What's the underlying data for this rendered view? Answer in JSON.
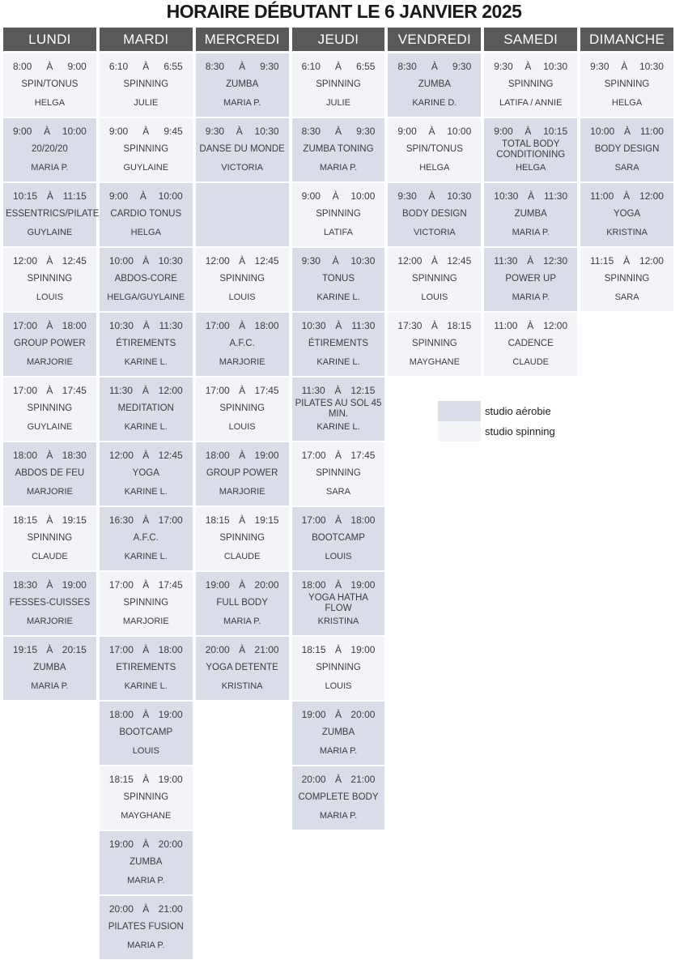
{
  "title": "HORAIRE DÉBUTANT LE 6 JANVIER 2025",
  "time_separator": "À",
  "colors": {
    "header_bg": "#595959",
    "header_text": "#ffffff",
    "aerobie": "#d8dde7",
    "spinning": "#f2f4f8",
    "cell_text": "#3c3c3c"
  },
  "legend": {
    "items": [
      {
        "label": "studio aérobie",
        "studio": "aerobie"
      },
      {
        "label": "studio spinning",
        "studio": "spinning"
      }
    ]
  },
  "days": [
    {
      "name": "LUNDI",
      "slots": [
        {
          "start": "8:00",
          "end": "9:00",
          "name": "SPIN/TONUS",
          "instructor": "HELGA",
          "studio": "spinning"
        },
        {
          "start": "9:00",
          "end": "10:00",
          "name": "20/20/20",
          "instructor": "MARIA P.",
          "studio": "aerobie"
        },
        {
          "start": "10:15",
          "end": "11:15",
          "name": "ESSENTRICS/PILATES",
          "instructor": "GUYLAINE",
          "studio": "aerobie"
        },
        {
          "start": "12:00",
          "end": "12:45",
          "name": "SPINNING",
          "instructor": "LOUIS",
          "studio": "spinning"
        },
        {
          "start": "17:00",
          "end": "18:00",
          "name": "GROUP POWER",
          "instructor": "MARJORIE",
          "studio": "aerobie"
        },
        {
          "start": "17:00",
          "end": "17:45",
          "name": "SPINNING",
          "instructor": "GUYLAINE",
          "studio": "spinning"
        },
        {
          "start": "18:00",
          "end": "18:30",
          "name": "ABDOS DE FEU",
          "instructor": "MARJORIE",
          "studio": "aerobie"
        },
        {
          "start": "18:15",
          "end": "19:15",
          "name": "SPINNING",
          "instructor": "CLAUDE",
          "studio": "spinning"
        },
        {
          "start": "18:30",
          "end": "19:00",
          "name": "FESSES-CUISSES",
          "instructor": "MARJORIE",
          "studio": "aerobie"
        },
        {
          "start": "19:15",
          "end": "20:15",
          "name": "ZUMBA",
          "instructor": "MARIA P.",
          "studio": "aerobie"
        }
      ]
    },
    {
      "name": "MARDI",
      "slots": [
        {
          "start": "6:10",
          "end": "6:55",
          "name": "SPINNING",
          "instructor": "JULIE",
          "studio": "spinning"
        },
        {
          "start": "9:00",
          "end": "9:45",
          "name": "SPINNING",
          "instructor": "GUYLAINE",
          "studio": "spinning"
        },
        {
          "start": "9:00",
          "end": "10:00",
          "name": "CARDIO TONUS",
          "instructor": "HELGA",
          "studio": "aerobie"
        },
        {
          "start": "10:00",
          "end": "10:30",
          "name": "ABDOS-CORE",
          "instructor": "HELGA/GUYLAINE",
          "studio": "aerobie"
        },
        {
          "start": "10:30",
          "end": "11:30",
          "name": "ÉTIREMENTS",
          "instructor": "KARINE L.",
          "studio": "aerobie"
        },
        {
          "start": "11:30",
          "end": "12:00",
          "name": "MEDITATION",
          "instructor": "KARINE L.",
          "studio": "aerobie"
        },
        {
          "start": "12:00",
          "end": "12:45",
          "name": "YOGA",
          "instructor": "KARINE L.",
          "studio": "aerobie"
        },
        {
          "start": "16:30",
          "end": "17:00",
          "name": "A.F.C.",
          "instructor": "KARINE L.",
          "studio": "aerobie"
        },
        {
          "start": "17:00",
          "end": "17:45",
          "name": "SPINNING",
          "instructor": "MARJORIE",
          "studio": "spinning"
        },
        {
          "start": "17:00",
          "end": "18:00",
          "name": "ETIREMENTS",
          "instructor": "KARINE L.",
          "studio": "aerobie"
        },
        {
          "start": "18:00",
          "end": "19:00",
          "name": "BOOTCAMP",
          "instructor": "LOUIS",
          "studio": "aerobie"
        },
        {
          "start": "18:15",
          "end": "19:00",
          "name": "SPINNING",
          "instructor": "MAYGHANE",
          "studio": "spinning"
        },
        {
          "start": "19:00",
          "end": "20:00",
          "name": "ZUMBA",
          "instructor": "MARIA P.",
          "studio": "aerobie"
        },
        {
          "start": "20:00",
          "end": "21:00",
          "name": "PILATES FUSION",
          "instructor": "MARIA P.",
          "studio": "aerobie"
        }
      ]
    },
    {
      "name": "MERCREDI",
      "slots": [
        {
          "start": "8:30",
          "end": "9:30",
          "name": "ZUMBA",
          "instructor": "MARIA P.",
          "studio": "aerobie"
        },
        {
          "start": "9:30",
          "end": "10:30",
          "name": "DANSE DU MONDE",
          "instructor": "VICTORIA",
          "studio": "aerobie"
        },
        {
          "start": "",
          "end": "",
          "name": "",
          "instructor": "",
          "studio": "aerobie",
          "empty": true
        },
        {
          "start": "12:00",
          "end": "12:45",
          "name": "SPINNING",
          "instructor": "LOUIS",
          "studio": "spinning"
        },
        {
          "start": "17:00",
          "end": "18:00",
          "name": "A.F.C.",
          "instructor": "MARJORIE",
          "studio": "aerobie"
        },
        {
          "start": "17:00",
          "end": "17:45",
          "name": "SPINNING",
          "instructor": "LOUIS",
          "studio": "spinning"
        },
        {
          "start": "18:00",
          "end": "19:00",
          "name": "GROUP POWER",
          "instructor": "MARJORIE",
          "studio": "aerobie"
        },
        {
          "start": "18:15",
          "end": "19:15",
          "name": "SPINNING",
          "instructor": "CLAUDE",
          "studio": "spinning"
        },
        {
          "start": "19:00",
          "end": "20:00",
          "name": "FULL BODY",
          "instructor": "MARIA P.",
          "studio": "aerobie"
        },
        {
          "start": "20:00",
          "end": "21:00",
          "name": "YOGA DETENTE",
          "instructor": "KRISTINA",
          "studio": "aerobie"
        }
      ]
    },
    {
      "name": "JEUDI",
      "slots": [
        {
          "start": "6:10",
          "end": "6:55",
          "name": "SPINNING",
          "instructor": "JULIE",
          "studio": "spinning"
        },
        {
          "start": "8:30",
          "end": "9:30",
          "name": "ZUMBA TONING",
          "instructor": "MARIA P.",
          "studio": "aerobie"
        },
        {
          "start": "9:00",
          "end": "10:00",
          "name": "SPINNING",
          "instructor": "LATIFA",
          "studio": "spinning"
        },
        {
          "start": "9:30",
          "end": "10:30",
          "name": "TONUS",
          "instructor": "KARINE L.",
          "studio": "aerobie"
        },
        {
          "start": "10:30",
          "end": "11:30",
          "name": "ÉTIREMENTS",
          "instructor": "KARINE L.",
          "studio": "aerobie"
        },
        {
          "start": "11:30",
          "end": "12:15",
          "name": "PILATES AU SOL 45 MIN.",
          "instructor": "KARINE L.",
          "studio": "aerobie"
        },
        {
          "start": "17:00",
          "end": "17:45",
          "name": "SPINNING",
          "instructor": "SARA",
          "studio": "spinning"
        },
        {
          "start": "17:00",
          "end": "18:00",
          "name": "BOOTCAMP",
          "instructor": "LOUIS",
          "studio": "aerobie"
        },
        {
          "start": "18:00",
          "end": "19:00",
          "name": "YOGA HATHA FLOW",
          "instructor": "KRISTINA",
          "studio": "aerobie"
        },
        {
          "start": "18:15",
          "end": "19:00",
          "name": "SPINNING",
          "instructor": "LOUIS",
          "studio": "spinning"
        },
        {
          "start": "19:00",
          "end": "20:00",
          "name": "ZUMBA",
          "instructor": "MARIA P.",
          "studio": "aerobie"
        },
        {
          "start": "20:00",
          "end": "21:00",
          "name": "COMPLETE BODY",
          "instructor": "MARIA P.",
          "studio": "aerobie"
        }
      ]
    },
    {
      "name": "VENDREDI",
      "slots": [
        {
          "start": "8:30",
          "end": "9:30",
          "name": "ZUMBA",
          "instructor": "KARINE D.",
          "studio": "aerobie"
        },
        {
          "start": "9:00",
          "end": "10:00",
          "name": "SPIN/TONUS",
          "instructor": "HELGA",
          "studio": "spinning"
        },
        {
          "start": "9:30",
          "end": "10:30",
          "name": "BODY DESIGN",
          "instructor": "VICTORIA",
          "studio": "aerobie"
        },
        {
          "start": "12:00",
          "end": "12:45",
          "name": "SPINNING",
          "instructor": "LOUIS",
          "studio": "spinning"
        },
        {
          "start": "17:30",
          "end": "18:15",
          "name": "SPINNING",
          "instructor": "MAYGHANE",
          "studio": "spinning"
        }
      ]
    },
    {
      "name": "SAMEDI",
      "slots": [
        {
          "start": "9:30",
          "end": "10:30",
          "name": "SPINNING",
          "instructor": "LATIFA / ANNIE",
          "studio": "spinning"
        },
        {
          "start": "9:00",
          "end": "10:15",
          "name": "TOTAL BODY CONDITIONING",
          "instructor": "HELGA",
          "studio": "aerobie"
        },
        {
          "start": "10:30",
          "end": "11:30",
          "name": "ZUMBA",
          "instructor": "MARIA P.",
          "studio": "aerobie"
        },
        {
          "start": "11:30",
          "end": "12:30",
          "name": "POWER UP",
          "instructor": "MARIA P.",
          "studio": "aerobie"
        },
        {
          "start": "11:00",
          "end": "12:00",
          "name": "CADENCE",
          "instructor": "CLAUDE",
          "studio": "spinning"
        }
      ]
    },
    {
      "name": "DIMANCHE",
      "slots": [
        {
          "start": "9:30",
          "end": "10:30",
          "name": "SPINNING",
          "instructor": "HELGA",
          "studio": "spinning"
        },
        {
          "start": "10:00",
          "end": "11:00",
          "name": "BODY DESIGN",
          "instructor": "SARA",
          "studio": "aerobie"
        },
        {
          "start": "11:00",
          "end": "12:00",
          "name": "YOGA",
          "instructor": "KRISTINA",
          "studio": "aerobie"
        },
        {
          "start": "11:15",
          "end": "12:00",
          "name": "SPINNING",
          "instructor": "SARA",
          "studio": "spinning"
        }
      ]
    }
  ]
}
